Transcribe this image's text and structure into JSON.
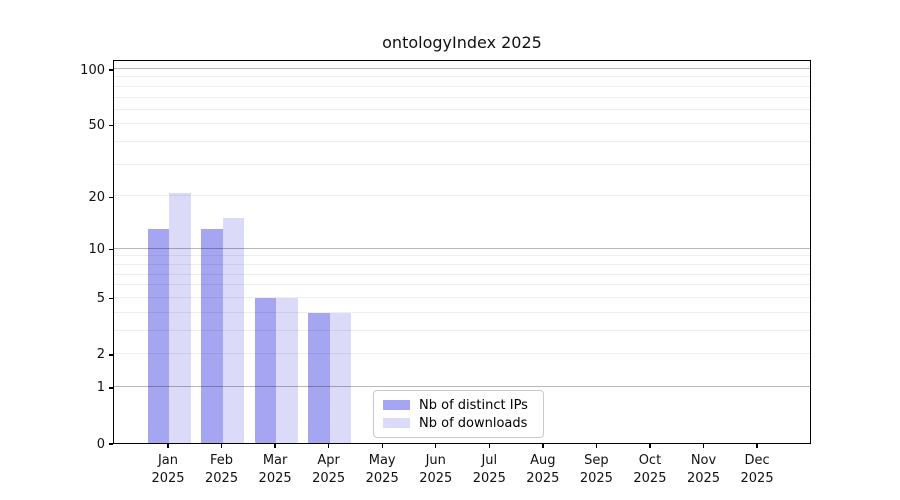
{
  "chart_data": {
    "type": "bar",
    "title": "ontologyIndex 2025",
    "categories": [
      "Jan",
      "Feb",
      "Mar",
      "Apr",
      "May",
      "Jun",
      "Jul",
      "Aug",
      "Sep",
      "Oct",
      "Nov",
      "Dec"
    ],
    "category_year": "2025",
    "series": [
      {
        "name": "Nb of distinct IPs",
        "color": "#a5a5f2",
        "values": [
          13,
          13,
          5,
          4,
          0,
          0,
          0,
          0,
          0,
          0,
          0,
          0
        ]
      },
      {
        "name": "Nb of downloads",
        "color": "#dbdbf9",
        "values": [
          21,
          15,
          5,
          4,
          0,
          0,
          0,
          0,
          0,
          0,
          0,
          0
        ]
      }
    ],
    "y_axis": {
      "scale": "log1p",
      "ticks": [
        0,
        1,
        2,
        5,
        10,
        20,
        50,
        100
      ],
      "major_gridlines": [
        1,
        10,
        100
      ],
      "minor_gridlines": [
        2,
        3,
        4,
        5,
        6,
        7,
        8,
        9,
        20,
        30,
        40,
        50,
        60,
        70,
        80,
        90
      ],
      "max": 100
    },
    "legend_position": "bottom-center",
    "colors": {
      "grid_major": "rgba(0,0,0,0.28)",
      "grid_minor": "rgba(0,0,0,0.065)",
      "spine": "#000000",
      "text": "#111111"
    }
  }
}
